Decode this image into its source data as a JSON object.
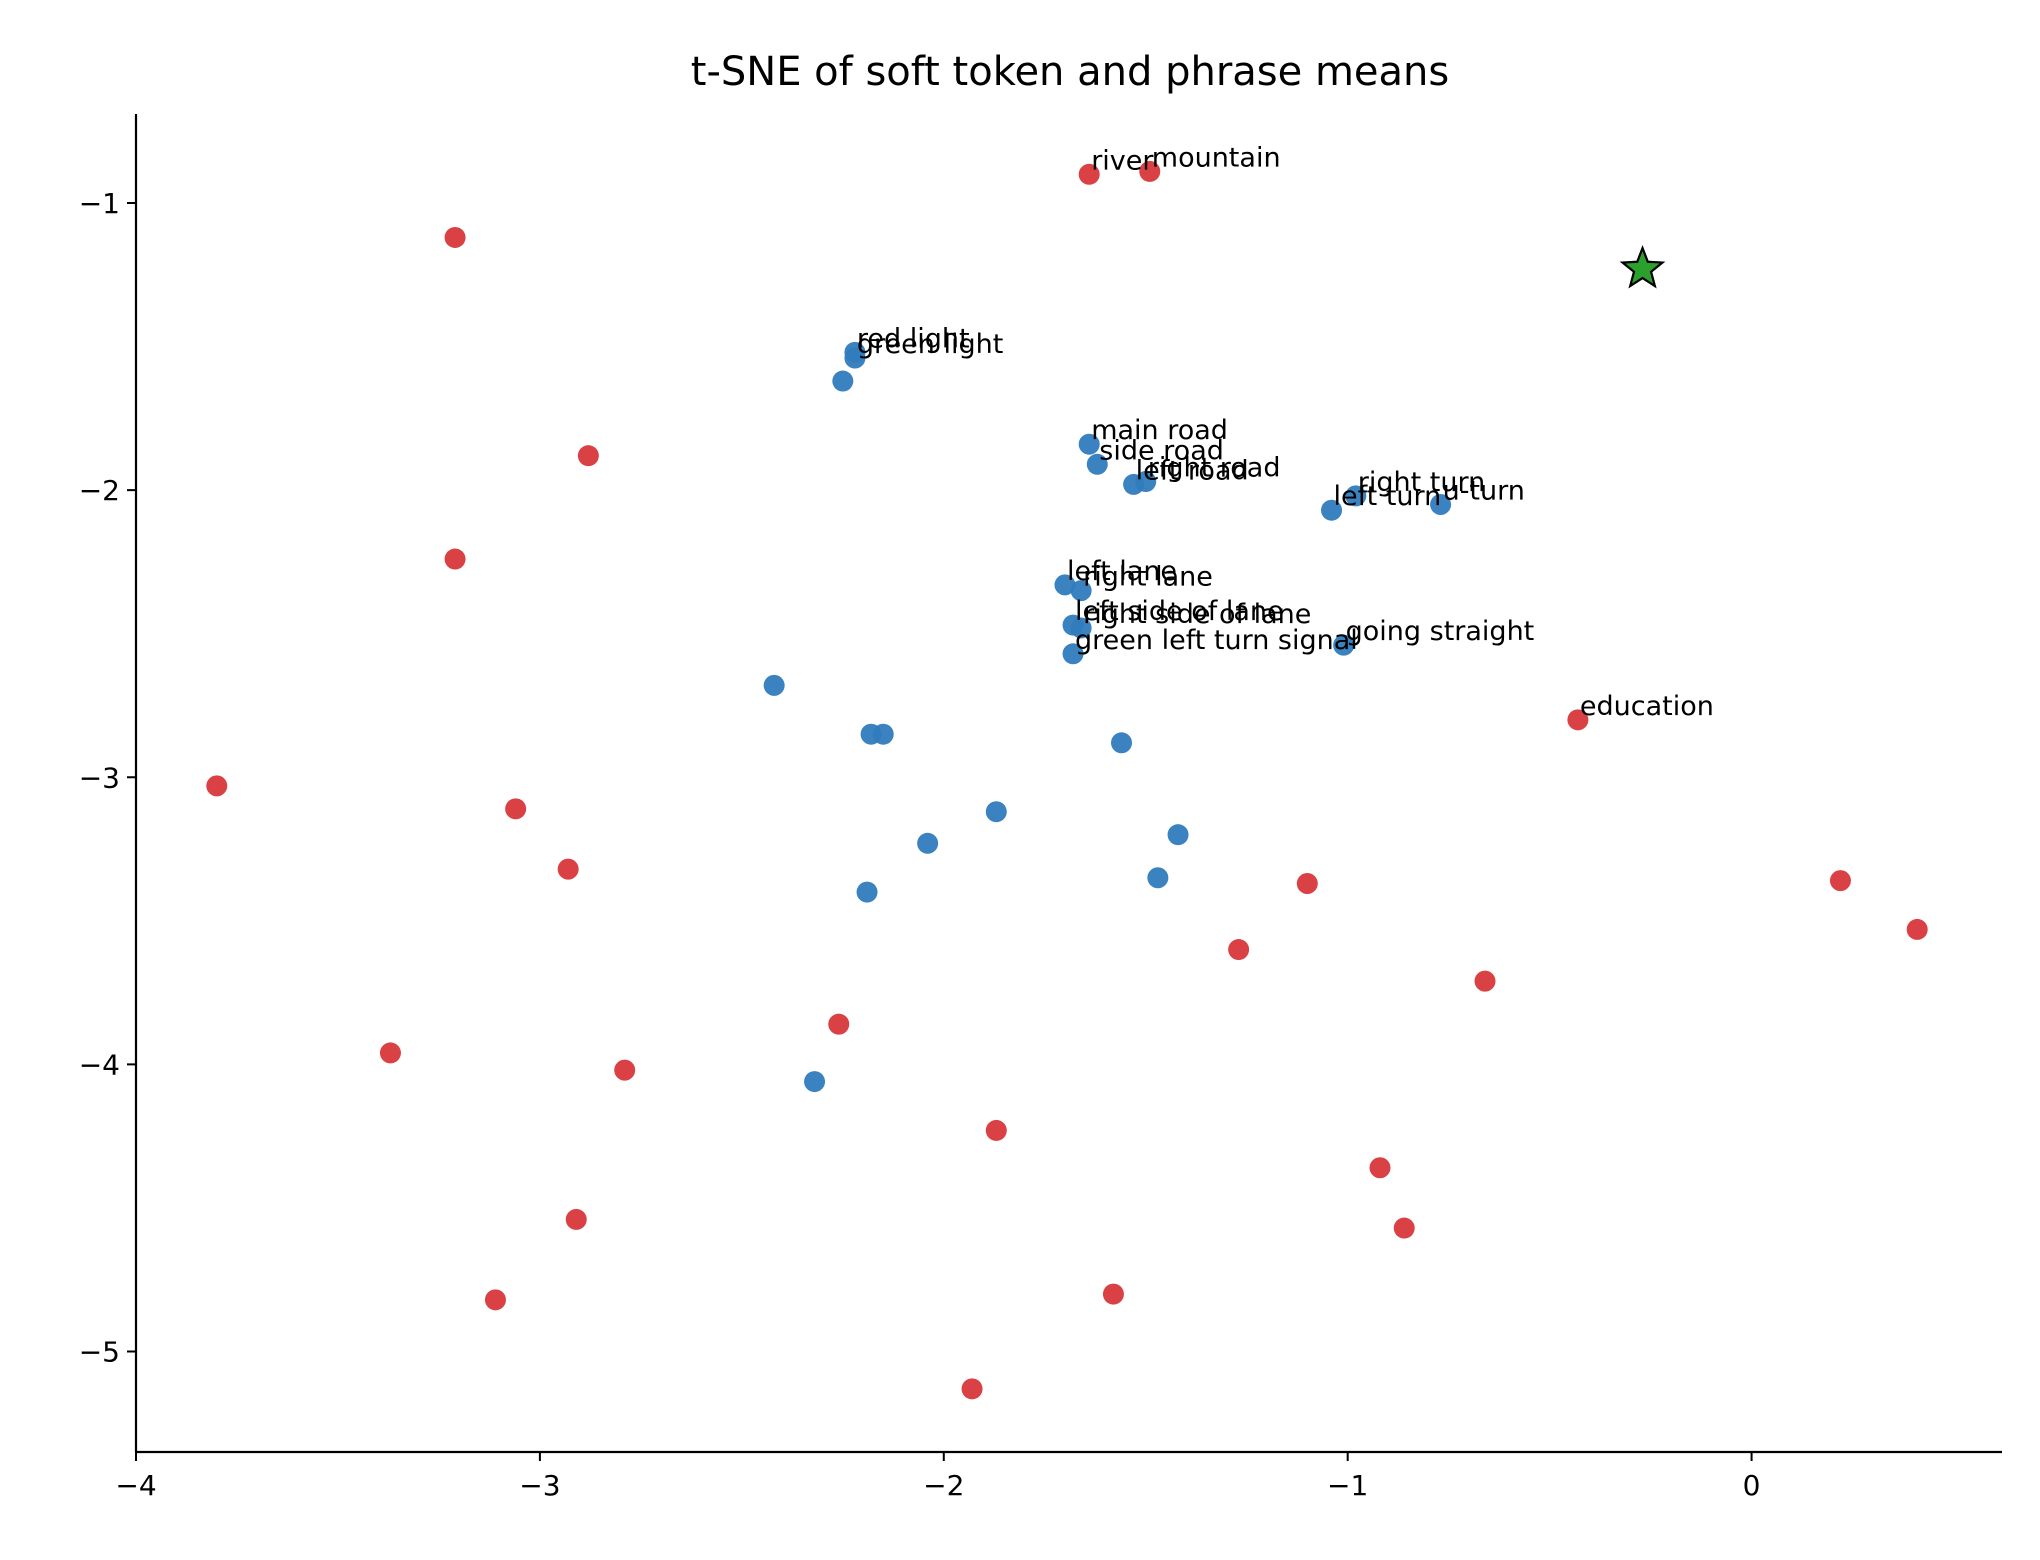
{
  "chart_data": {
    "type": "scatter",
    "title": "t-SNE of soft token and phrase means",
    "xlabel": "",
    "ylabel": "",
    "xlim": [
      -4.0,
      0.62
    ],
    "ylim": [
      -5.35,
      -0.69
    ],
    "xticks": [
      -4,
      -3,
      -2,
      -1,
      0
    ],
    "xtick_labels": [
      "−4",
      "−3",
      "−2",
      "−1",
      "0"
    ],
    "yticks": [
      -1,
      -2,
      -3,
      -4,
      -5
    ],
    "ytick_labels": [
      "−1",
      "−2",
      "−3",
      "−4",
      "−5"
    ],
    "grid": false,
    "colors": {
      "blue": "#2f7bbd",
      "red": "#d8373a",
      "green": "#2ca02c"
    },
    "series": [
      {
        "marker": "circle",
        "color": "#2f7bbd",
        "points": [
          {
            "x": -2.22,
            "y": -1.52,
            "label": "red light"
          },
          {
            "x": -2.22,
            "y": -1.54,
            "label": "green light"
          },
          {
            "x": -2.25,
            "y": -1.62
          },
          {
            "x": -1.64,
            "y": -1.84,
            "label": "main road"
          },
          {
            "x": -1.62,
            "y": -1.91,
            "label": "side road"
          },
          {
            "x": -1.53,
            "y": -1.98,
            "label": "left road"
          },
          {
            "x": -1.5,
            "y": -1.97,
            "label": "right road"
          },
          {
            "x": -0.98,
            "y": -2.02,
            "label": "right turn"
          },
          {
            "x": -1.04,
            "y": -2.07,
            "label": "left turn"
          },
          {
            "x": -0.77,
            "y": -2.05,
            "label": "u-turn"
          },
          {
            "x": -1.7,
            "y": -2.33,
            "label": "left lane"
          },
          {
            "x": -1.66,
            "y": -2.35,
            "label": "right lane"
          },
          {
            "x": -1.68,
            "y": -2.47,
            "label": "left side of lane"
          },
          {
            "x": -1.66,
            "y": -2.48,
            "label": "right side of lane"
          },
          {
            "x": -1.68,
            "y": -2.57,
            "label": "green left turn signal"
          },
          {
            "x": -1.01,
            "y": -2.54,
            "label": "going straight"
          },
          {
            "x": -2.42,
            "y": -2.68
          },
          {
            "x": -2.18,
            "y": -2.85
          },
          {
            "x": -2.15,
            "y": -2.85
          },
          {
            "x": -1.56,
            "y": -2.88
          },
          {
            "x": -1.87,
            "y": -3.12
          },
          {
            "x": -2.04,
            "y": -3.23
          },
          {
            "x": -1.42,
            "y": -3.2
          },
          {
            "x": -1.47,
            "y": -3.35
          },
          {
            "x": -2.19,
            "y": -3.4
          },
          {
            "x": -2.32,
            "y": -4.06
          }
        ]
      },
      {
        "marker": "circle",
        "color": "#d8373a",
        "points": [
          {
            "x": -1.64,
            "y": -0.9,
            "label": "river"
          },
          {
            "x": -1.49,
            "y": -0.89,
            "label": "mountain"
          },
          {
            "x": -0.43,
            "y": -2.8,
            "label": "education"
          },
          {
            "x": -3.21,
            "y": -1.12
          },
          {
            "x": -2.88,
            "y": -1.88
          },
          {
            "x": -3.21,
            "y": -2.24
          },
          {
            "x": -3.8,
            "y": -3.03
          },
          {
            "x": -3.06,
            "y": -3.11
          },
          {
            "x": -2.93,
            "y": -3.32
          },
          {
            "x": -1.1,
            "y": -3.37
          },
          {
            "x": 0.22,
            "y": -3.36
          },
          {
            "x": 0.41,
            "y": -3.53
          },
          {
            "x": -1.27,
            "y": -3.6
          },
          {
            "x": -0.66,
            "y": -3.71
          },
          {
            "x": -2.26,
            "y": -3.86
          },
          {
            "x": -3.37,
            "y": -3.96
          },
          {
            "x": -2.79,
            "y": -4.02
          },
          {
            "x": -1.87,
            "y": -4.23
          },
          {
            "x": -0.92,
            "y": -4.36
          },
          {
            "x": -2.91,
            "y": -4.54
          },
          {
            "x": -0.86,
            "y": -4.57
          },
          {
            "x": -3.11,
            "y": -4.82
          },
          {
            "x": -1.58,
            "y": -4.8
          },
          {
            "x": -1.93,
            "y": -5.13
          }
        ]
      },
      {
        "marker": "star",
        "color": "#2ca02c",
        "points": [
          {
            "x": -0.27,
            "y": -1.23
          }
        ]
      }
    ]
  }
}
